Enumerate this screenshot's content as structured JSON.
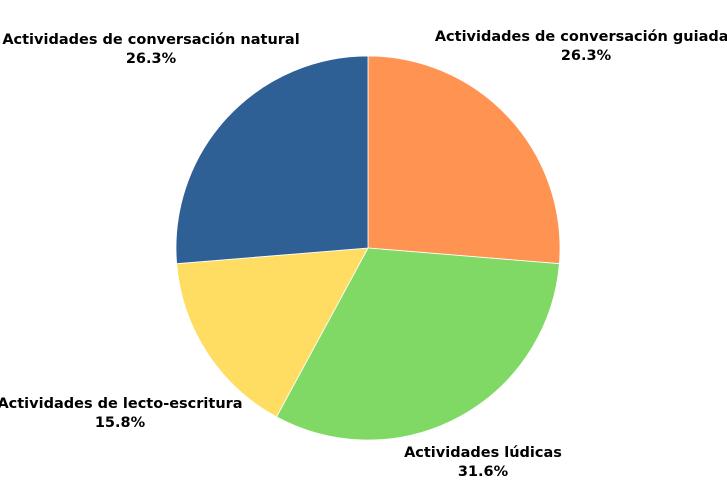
{
  "chart_data": {
    "type": "pie",
    "title": "",
    "start_angle_deg": 0,
    "direction": "clockwise",
    "slices": [
      {
        "label": "Actividades de conversación guiadas",
        "value": 26.3,
        "percent_label": "26.3%",
        "color": "#FF9452"
      },
      {
        "label": "Actividades lúdicas",
        "value": 31.6,
        "percent_label": "31.6%",
        "color": "#80D965"
      },
      {
        "label": "Actividades de lecto-escritura",
        "value": 15.8,
        "percent_label": "15.8%",
        "color": "#FFDD63"
      },
      {
        "label": "Actividades de conversación natural",
        "value": 26.3,
        "percent_label": "26.3%",
        "color": "#2E6096"
      }
    ]
  }
}
